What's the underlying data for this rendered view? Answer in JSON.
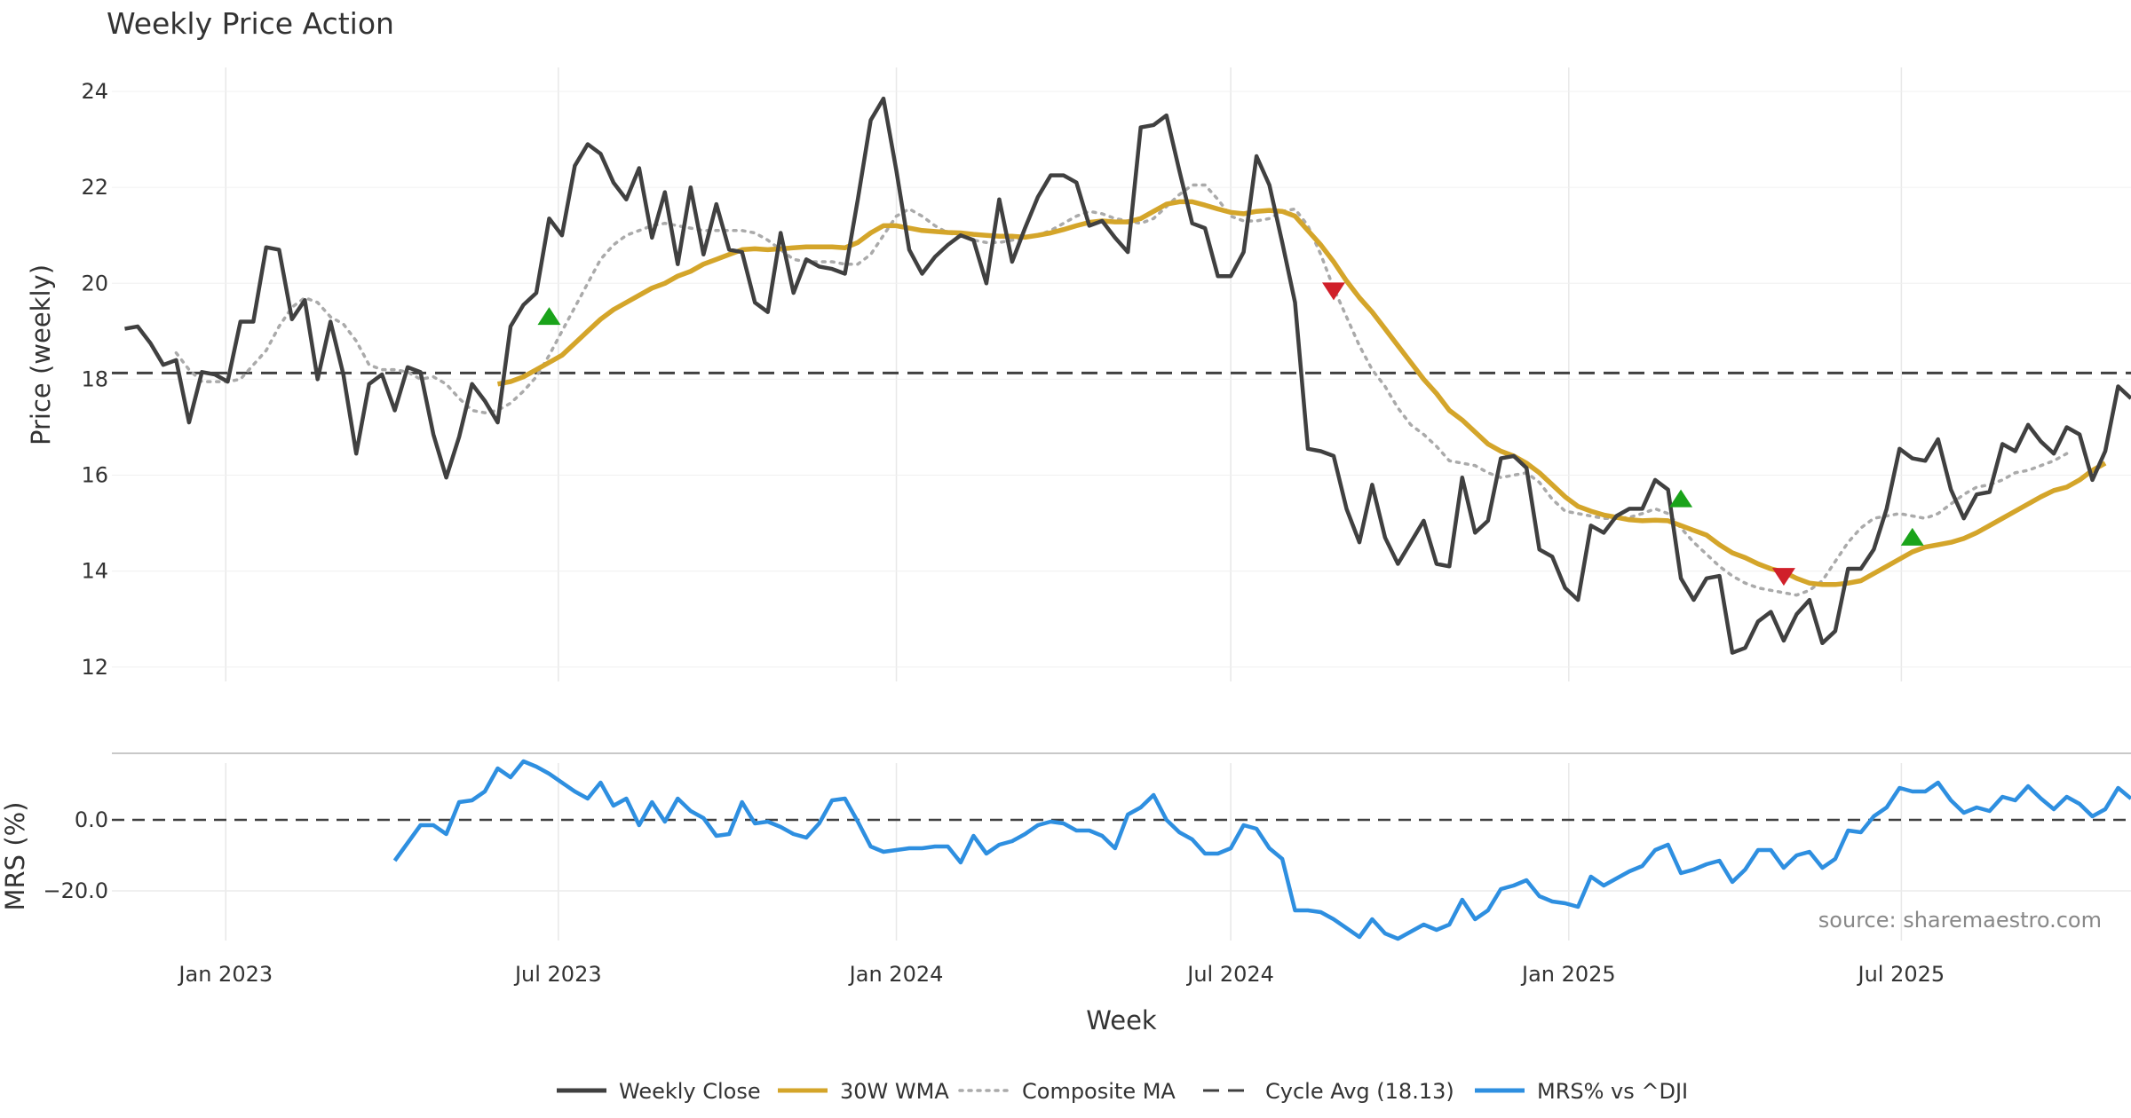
{
  "chart_data": {
    "type": "line",
    "title": "Weekly Price Action",
    "source_note": "source: sharemaestro.com",
    "xlabel": "Week",
    "x_ticks": [
      "Jan 2023",
      "Jul 2023",
      "Jan 2024",
      "Jul 2024",
      "Jan 2025",
      "Jul 2025"
    ],
    "x_range": [
      "2022-10-31",
      "2025-11-03"
    ],
    "price_panel": {
      "ylabel": "Price (weekly)",
      "ylim": [
        11.7,
        24.5
      ],
      "y_ticks": [
        12,
        14,
        16,
        18,
        20,
        22,
        24
      ],
      "cycle_avg": 18.13
    },
    "mrs_panel": {
      "ylabel": "MRS (%)",
      "ylim": [
        -34,
        16
      ],
      "y_ticks": [
        0,
        -20
      ],
      "y_tick_labels": [
        "0.0",
        "−20.0"
      ],
      "zero_line": 0
    },
    "legend": [
      {
        "key": "close",
        "label": "Weekly Close",
        "style": "solid",
        "color": "#404040"
      },
      {
        "key": "wma",
        "label": "30W WMA",
        "style": "solid",
        "color": "#D4A52A"
      },
      {
        "key": "composite",
        "label": "Composite MA",
        "style": "dotted",
        "color": "#AAAAAA"
      },
      {
        "key": "cycle",
        "label": "Cycle Avg (18.13)",
        "style": "dashed",
        "color": "#404040"
      },
      {
        "key": "mrs",
        "label": "MRS% vs ^DJI",
        "style": "solid",
        "color": "#2E8FE0"
      }
    ],
    "series": [
      {
        "name": "Weekly Close",
        "start": "2022-11-07",
        "step_days": 7,
        "values": [
          19.05,
          19.1,
          18.75,
          18.3,
          18.4,
          17.1,
          18.15,
          18.1,
          17.95,
          19.2,
          19.2,
          20.75,
          20.7,
          19.25,
          19.65,
          18.0,
          19.2,
          18.1,
          16.45,
          17.9,
          18.1,
          17.35,
          18.25,
          18.15,
          16.85,
          15.95,
          16.8,
          17.9,
          17.55,
          17.1,
          19.1,
          19.55,
          19.8,
          21.35,
          21.0,
          22.45,
          22.9,
          22.7,
          22.1,
          21.75,
          22.4,
          20.95,
          21.9,
          20.4,
          22.0,
          20.6,
          21.65,
          20.7,
          20.65,
          19.6,
          19.4,
          21.05,
          19.8,
          20.5,
          20.35,
          20.3,
          20.2,
          21.75,
          23.4,
          23.85,
          22.35,
          20.7,
          20.2,
          20.55,
          20.8,
          21.0,
          20.9,
          20.0,
          21.75,
          20.45,
          21.15,
          21.8,
          22.25,
          22.25,
          22.1,
          21.2,
          21.3,
          20.95,
          20.65,
          23.25,
          23.3,
          23.5,
          22.35,
          21.25,
          21.15,
          20.15,
          20.15,
          20.65,
          22.65,
          22.05,
          20.85,
          19.6,
          16.55,
          16.5,
          16.4,
          15.3,
          14.6,
          15.8,
          14.7,
          14.15,
          14.6,
          15.05,
          14.15,
          14.1,
          15.95,
          14.8,
          15.05,
          16.35,
          16.4,
          16.15,
          14.45,
          14.3,
          13.65,
          13.4,
          14.95,
          14.8,
          15.15,
          15.3,
          15.3,
          15.9,
          15.7,
          13.85,
          13.4,
          13.85,
          13.9,
          12.3,
          12.4,
          12.95,
          13.15,
          12.55,
          13.1,
          13.4,
          12.5,
          12.75,
          14.05,
          14.05,
          14.45,
          15.3,
          16.55,
          16.35,
          16.3,
          16.75,
          15.7,
          15.1,
          15.6,
          15.65,
          16.65,
          16.5,
          17.05,
          16.7,
          16.45,
          17.0,
          16.85,
          15.9,
          16.5,
          17.85,
          17.6
        ]
      },
      {
        "name": "30W WMA",
        "start": "2023-05-29",
        "step_days": 7,
        "values": [
          17.9,
          17.95,
          18.05,
          18.2,
          18.35,
          18.5,
          18.75,
          19.0,
          19.25,
          19.45,
          19.6,
          19.75,
          19.9,
          20.0,
          20.15,
          20.25,
          20.4,
          20.5,
          20.6,
          20.7,
          20.72,
          20.7,
          20.72,
          20.74,
          20.76,
          20.76,
          20.76,
          20.74,
          20.85,
          21.05,
          21.2,
          21.2,
          21.15,
          21.1,
          21.08,
          21.06,
          21.05,
          21.02,
          21.0,
          20.98,
          20.98,
          20.96,
          21.0,
          21.05,
          21.12,
          21.2,
          21.27,
          21.3,
          21.28,
          21.28,
          21.35,
          21.5,
          21.65,
          21.7,
          21.7,
          21.63,
          21.55,
          21.48,
          21.45,
          21.5,
          21.52,
          21.5,
          21.4,
          21.1,
          20.8,
          20.45,
          20.05,
          19.7,
          19.4,
          19.05,
          18.7,
          18.35,
          18.0,
          17.7,
          17.35,
          17.15,
          16.9,
          16.65,
          16.5,
          16.4,
          16.25,
          16.05,
          15.8,
          15.55,
          15.35,
          15.25,
          15.17,
          15.12,
          15.07,
          15.05,
          15.06,
          15.05,
          14.95,
          14.85,
          14.75,
          14.55,
          14.38,
          14.28,
          14.15,
          14.05,
          13.98,
          13.85,
          13.75,
          13.72,
          13.72,
          13.75,
          13.8,
          13.95,
          14.1,
          14.25,
          14.4,
          14.5,
          14.55,
          14.6,
          14.68,
          14.8,
          14.95,
          15.1,
          15.25,
          15.4,
          15.55,
          15.68,
          15.75,
          15.9,
          16.1,
          16.25
        ]
      },
      {
        "name": "Composite MA",
        "start": "2022-12-05",
        "step_days": 7,
        "values": [
          18.55,
          18.2,
          17.95,
          17.95,
          17.95,
          18.0,
          18.3,
          18.6,
          19.1,
          19.5,
          19.7,
          19.6,
          19.3,
          19.15,
          18.8,
          18.3,
          18.2,
          18.2,
          18.15,
          18.0,
          18.05,
          17.9,
          17.6,
          17.35,
          17.3,
          17.35,
          17.5,
          17.75,
          18.05,
          18.5,
          19.0,
          19.5,
          20.0,
          20.5,
          20.8,
          21.0,
          21.1,
          21.2,
          21.25,
          21.2,
          21.15,
          21.1,
          21.1,
          21.1,
          21.1,
          21.05,
          20.9,
          20.7,
          20.5,
          20.45,
          20.45,
          20.45,
          20.4,
          20.4,
          20.6,
          21.0,
          21.4,
          21.55,
          21.4,
          21.2,
          21.05,
          21.0,
          20.9,
          20.85,
          20.85,
          20.9,
          20.95,
          21.0,
          21.1,
          21.25,
          21.4,
          21.5,
          21.45,
          21.35,
          21.3,
          21.25,
          21.35,
          21.6,
          21.85,
          22.05,
          22.05,
          21.75,
          21.4,
          21.3,
          21.3,
          21.35,
          21.5,
          21.55,
          21.2,
          20.6,
          19.9,
          19.3,
          18.7,
          18.2,
          17.85,
          17.4,
          17.05,
          16.85,
          16.6,
          16.3,
          16.25,
          16.2,
          16.05,
          15.95,
          16.0,
          16.05,
          15.85,
          15.5,
          15.25,
          15.2,
          15.15,
          15.1,
          15.1,
          15.12,
          15.2,
          15.3,
          15.2,
          14.9,
          14.6,
          14.35,
          14.1,
          13.9,
          13.75,
          13.65,
          13.6,
          13.55,
          13.5,
          13.6,
          13.8,
          14.2,
          14.6,
          14.9,
          15.1,
          15.15,
          15.2,
          15.15,
          15.1,
          15.2,
          15.4,
          15.6,
          15.75,
          15.8,
          15.9,
          16.05,
          16.1,
          16.2,
          16.3,
          16.45
        ]
      },
      {
        "name": "MRS% vs ^DJI",
        "start": "2023-04-03",
        "step_days": 7,
        "values": [
          -11.5,
          -6.5,
          -1.5,
          -1.5,
          -4.0,
          5.0,
          5.5,
          8.0,
          14.5,
          12.0,
          16.5,
          15.0,
          13.0,
          10.5,
          8.0,
          6.0,
          10.5,
          4.0,
          6.0,
          -1.5,
          5.0,
          -0.5,
          6.0,
          2.5,
          0.5,
          -4.5,
          -4.0,
          5.0,
          -1.0,
          -0.5,
          -2.0,
          -4.0,
          -5.0,
          -1.0,
          5.5,
          6.0,
          -0.5,
          -7.5,
          -9.0,
          -8.5,
          -8.0,
          -8.0,
          -7.5,
          -7.5,
          -12.0,
          -4.5,
          -9.5,
          -7.0,
          -6.0,
          -4.0,
          -1.5,
          -0.5,
          -1.0,
          -3.0,
          -3.0,
          -4.5,
          -8.0,
          1.5,
          3.5,
          7.0,
          0.0,
          -3.5,
          -5.5,
          -9.5,
          -9.5,
          -8.0,
          -1.5,
          -2.5,
          -8.0,
          -11.0,
          -25.5,
          -25.5,
          -26.0,
          -28.0,
          -30.5,
          -33.0,
          -28.0,
          -32.0,
          -33.5,
          -31.5,
          -29.5,
          -31.0,
          -29.5,
          -22.5,
          -28.0,
          -25.5,
          -19.5,
          -18.5,
          -17.0,
          -21.5,
          -23.0,
          -23.5,
          -24.5,
          -16.0,
          -18.5,
          -16.5,
          -14.5,
          -13.0,
          -8.5,
          -7.0,
          -15.0,
          -14.0,
          -12.5,
          -11.5,
          -17.5,
          -14.0,
          -8.5,
          -8.5,
          -13.5,
          -10.0,
          -9.0,
          -13.5,
          -11.0,
          -3.0,
          -3.5,
          1.0,
          3.5,
          9.0,
          8.0,
          8.0,
          10.5,
          5.5,
          2.0,
          3.5,
          2.5,
          6.5,
          5.5,
          9.5,
          6.0,
          3.0,
          6.5,
          4.5,
          1.0,
          3.0,
          9.0,
          6.0
        ]
      }
    ],
    "signals": [
      {
        "type": "buy",
        "date": "2023-06-26",
        "price": 19.3
      },
      {
        "type": "sell",
        "date": "2024-08-26",
        "price": 19.85
      },
      {
        "type": "buy",
        "date": "2025-03-03",
        "price": 15.5
      },
      {
        "type": "sell",
        "date": "2025-04-28",
        "price": 13.9
      },
      {
        "type": "buy",
        "date": "2025-07-07",
        "price": 14.7
      }
    ],
    "colors": {
      "close": "#404040",
      "wma": "#D4A52A",
      "composite": "#AAAAAA",
      "cycle": "#404040",
      "mrs": "#2E8FE0",
      "buy": "#1AA31A",
      "sell": "#D0202A",
      "grid": "#E8E8E8",
      "separator": "#C8C8C8"
    }
  }
}
